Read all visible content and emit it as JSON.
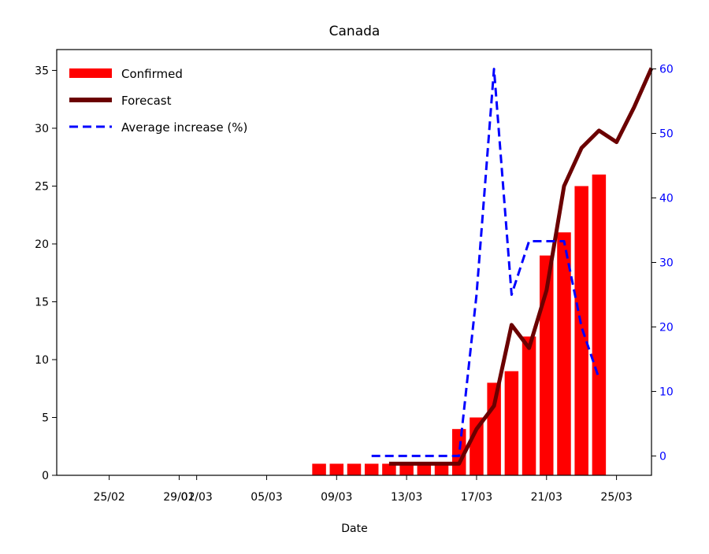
{
  "chart_data": {
    "type": "bar",
    "title": "Canada",
    "xlabel": "Date",
    "ylabel": "",
    "ylabel_right": "",
    "x_tick_labels": [
      "25/02",
      "29/02",
      "01/03",
      "05/03",
      "09/03",
      "13/03",
      "17/03",
      "21/03",
      "25/03"
    ],
    "x_tick_dates": [
      "25/02",
      "29/02",
      "01/03",
      "05/03",
      "09/03",
      "13/03",
      "17/03",
      "21/03",
      "25/03"
    ],
    "xlim": [
      "22/02",
      "27/03"
    ],
    "ylim": [
      0,
      36.8
    ],
    "y_ticks": [
      0,
      5,
      10,
      15,
      20,
      25,
      30,
      35
    ],
    "ylim_right": [
      -3,
      63
    ],
    "y_ticks_right": [
      0,
      10,
      20,
      30,
      40,
      50,
      60
    ],
    "legend_position": "top-left",
    "series": [
      {
        "name": "Confirmed",
        "type": "bar",
        "axis": "left",
        "color": "#ff0000",
        "x": [
          "08/03",
          "09/03",
          "10/03",
          "11/03",
          "12/03",
          "13/03",
          "14/03",
          "15/03",
          "16/03",
          "17/03",
          "18/03",
          "19/03",
          "20/03",
          "21/03",
          "22/03",
          "23/03",
          "24/03"
        ],
        "values": [
          1,
          1,
          1,
          1,
          1,
          1,
          1,
          1,
          4,
          5,
          8,
          9,
          12,
          19,
          21,
          25,
          26
        ]
      },
      {
        "name": "Forecast",
        "type": "line",
        "axis": "left",
        "color": "#6b0000",
        "x": [
          "12/03",
          "13/03",
          "14/03",
          "15/03",
          "16/03",
          "17/03",
          "18/03",
          "19/03",
          "20/03",
          "21/03",
          "22/03",
          "23/03",
          "24/03",
          "25/03",
          "26/03",
          "27/03"
        ],
        "values": [
          1,
          1,
          1,
          1,
          1,
          4,
          6,
          13,
          11,
          16,
          25,
          28.3,
          29.8,
          28.8,
          31.8,
          35.2
        ]
      },
      {
        "name": "Average increase (%)",
        "type": "line",
        "axis": "right",
        "color": "#0000ff",
        "dashed": true,
        "x": [
          "11/03",
          "12/03",
          "13/03",
          "14/03",
          "15/03",
          "16/03",
          "17/03",
          "18/03",
          "19/03",
          "20/03",
          "21/03",
          "22/03",
          "23/03",
          "24/03"
        ],
        "values": [
          0,
          0,
          0,
          0,
          0,
          0,
          25,
          60,
          25,
          33.3,
          33.3,
          33.3,
          20,
          12
        ]
      }
    ]
  }
}
